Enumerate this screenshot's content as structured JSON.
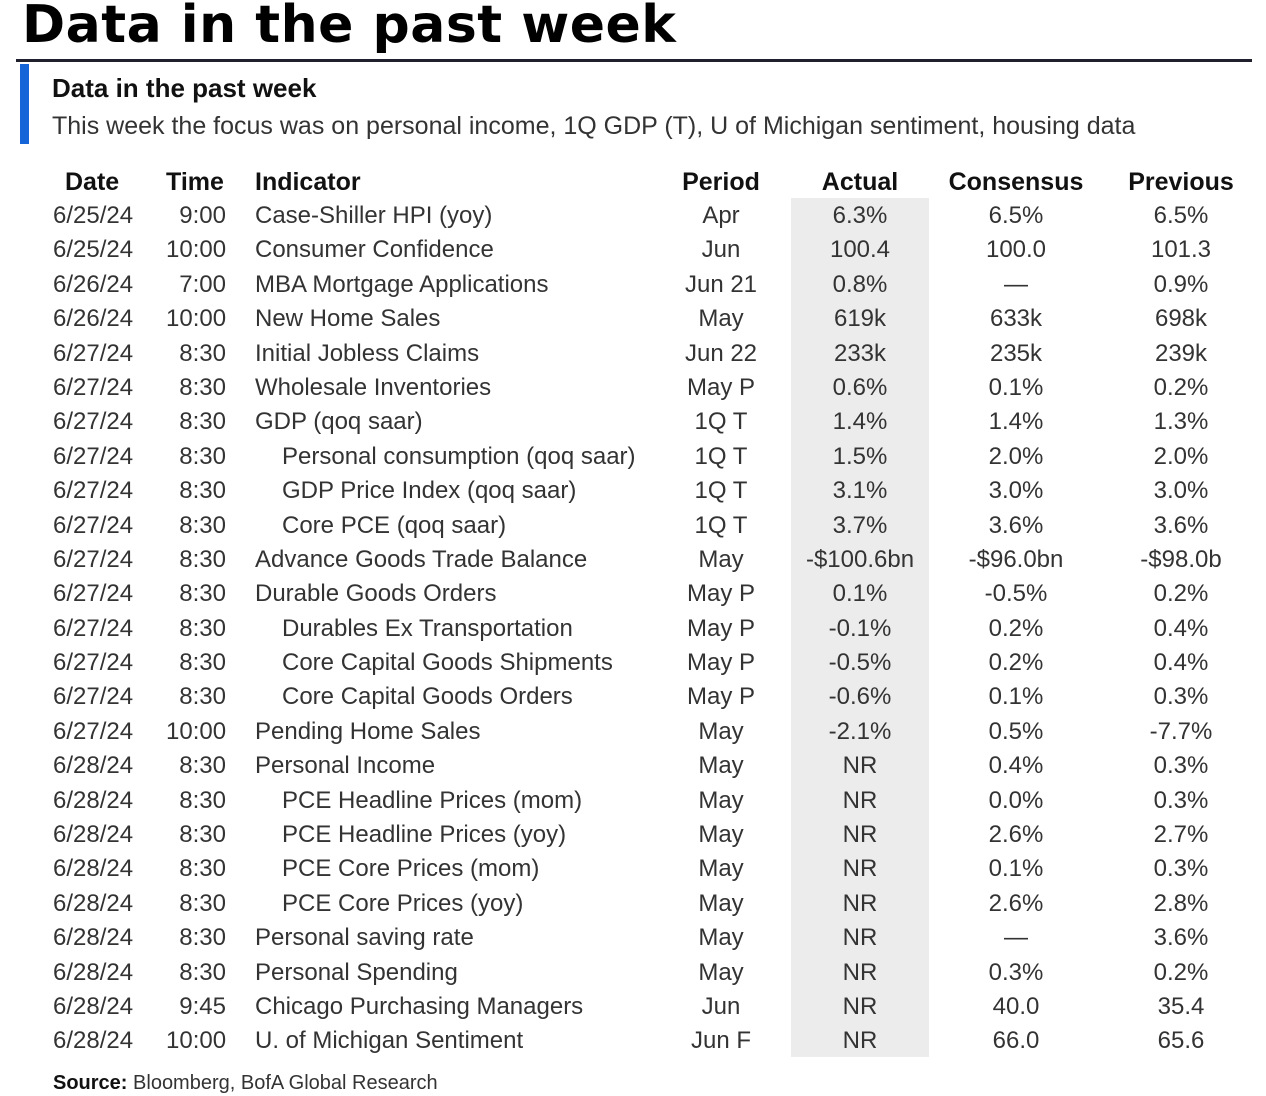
{
  "page_title": "Data in the past week",
  "table": {
    "title": "Data in the past week",
    "subtitle": "This week the focus was on personal income, 1Q GDP (T), U of Michigan sentiment, housing data",
    "headers": {
      "date": "Date",
      "time": "Time",
      "indicator": "Indicator",
      "period": "Period",
      "actual": "Actual",
      "consensus": "Consensus",
      "previous": "Previous"
    },
    "rows": [
      {
        "date": "6/25/24",
        "time": "9:00",
        "indicator": "Case-Shiller HPI (yoy)",
        "sub": false,
        "period": "Apr",
        "actual": "6.3%",
        "consensus": "6.5%",
        "previous": "6.5%"
      },
      {
        "date": "6/25/24",
        "time": "10:00",
        "indicator": "Consumer Confidence",
        "sub": false,
        "period": "Jun",
        "actual": "100.4",
        "consensus": "100.0",
        "previous": "101.3"
      },
      {
        "date": "6/26/24",
        "time": "7:00",
        "indicator": "MBA Mortgage Applications",
        "sub": false,
        "period": "Jun 21",
        "actual": "0.8%",
        "consensus": "—",
        "previous": "0.9%"
      },
      {
        "date": "6/26/24",
        "time": "10:00",
        "indicator": "New Home Sales",
        "sub": false,
        "period": "May",
        "actual": "619k",
        "consensus": "633k",
        "previous": "698k"
      },
      {
        "date": "6/27/24",
        "time": "8:30",
        "indicator": "Initial Jobless Claims",
        "sub": false,
        "period": "Jun 22",
        "actual": "233k",
        "consensus": "235k",
        "previous": "239k"
      },
      {
        "date": "6/27/24",
        "time": "8:30",
        "indicator": "Wholesale Inventories",
        "sub": false,
        "period": "May P",
        "actual": "0.6%",
        "consensus": "0.1%",
        "previous": "0.2%"
      },
      {
        "date": "6/27/24",
        "time": "8:30",
        "indicator": "GDP (qoq saar)",
        "sub": false,
        "period": "1Q T",
        "actual": "1.4%",
        "consensus": "1.4%",
        "previous": "1.3%"
      },
      {
        "date": "6/27/24",
        "time": "8:30",
        "indicator": "Personal consumption (qoq saar)",
        "sub": true,
        "period": "1Q T",
        "actual": "1.5%",
        "consensus": "2.0%",
        "previous": "2.0%"
      },
      {
        "date": "6/27/24",
        "time": "8:30",
        "indicator": "GDP Price Index (qoq saar)",
        "sub": true,
        "period": "1Q T",
        "actual": "3.1%",
        "consensus": "3.0%",
        "previous": "3.0%"
      },
      {
        "date": "6/27/24",
        "time": "8:30",
        "indicator": "Core PCE (qoq saar)",
        "sub": true,
        "period": "1Q T",
        "actual": "3.7%",
        "consensus": "3.6%",
        "previous": "3.6%"
      },
      {
        "date": "6/27/24",
        "time": "8:30",
        "indicator": "Advance Goods Trade Balance",
        "sub": false,
        "period": "May",
        "actual": "-$100.6bn",
        "consensus": "-$96.0bn",
        "previous": "-$98.0b"
      },
      {
        "date": "6/27/24",
        "time": "8:30",
        "indicator": "Durable Goods Orders",
        "sub": false,
        "period": "May P",
        "actual": "0.1%",
        "consensus": "-0.5%",
        "previous": "0.2%"
      },
      {
        "date": "6/27/24",
        "time": "8:30",
        "indicator": "Durables Ex Transportation",
        "sub": true,
        "period": "May P",
        "actual": "-0.1%",
        "consensus": "0.2%",
        "previous": "0.4%"
      },
      {
        "date": "6/27/24",
        "time": "8:30",
        "indicator": "Core Capital Goods Shipments",
        "sub": true,
        "period": "May P",
        "actual": "-0.5%",
        "consensus": "0.2%",
        "previous": "0.4%"
      },
      {
        "date": "6/27/24",
        "time": "8:30",
        "indicator": "Core Capital Goods Orders",
        "sub": true,
        "period": "May P",
        "actual": "-0.6%",
        "consensus": "0.1%",
        "previous": "0.3%"
      },
      {
        "date": "6/27/24",
        "time": "10:00",
        "indicator": "Pending Home Sales",
        "sub": false,
        "period": "May",
        "actual": "-2.1%",
        "consensus": "0.5%",
        "previous": "-7.7%"
      },
      {
        "date": "6/28/24",
        "time": "8:30",
        "indicator": "Personal Income",
        "sub": false,
        "period": "May",
        "actual": "NR",
        "consensus": "0.4%",
        "previous": "0.3%"
      },
      {
        "date": "6/28/24",
        "time": "8:30",
        "indicator": "PCE Headline Prices (mom)",
        "sub": true,
        "period": "May",
        "actual": "NR",
        "consensus": "0.0%",
        "previous": "0.3%"
      },
      {
        "date": "6/28/24",
        "time": "8:30",
        "indicator": "PCE Headline Prices (yoy)",
        "sub": true,
        "period": "May",
        "actual": "NR",
        "consensus": "2.6%",
        "previous": "2.7%"
      },
      {
        "date": "6/28/24",
        "time": "8:30",
        "indicator": "PCE Core Prices (mom)",
        "sub": true,
        "period": "May",
        "actual": "NR",
        "consensus": "0.1%",
        "previous": "0.3%"
      },
      {
        "date": "6/28/24",
        "time": "8:30",
        "indicator": "PCE Core Prices (yoy)",
        "sub": true,
        "period": "May",
        "actual": "NR",
        "consensus": "2.6%",
        "previous": "2.8%"
      },
      {
        "date": "6/28/24",
        "time": "8:30",
        "indicator": "Personal saving rate",
        "sub": false,
        "period": "May",
        "actual": "NR",
        "consensus": "—",
        "previous": "3.6%"
      },
      {
        "date": "6/28/24",
        "time": "8:30",
        "indicator": "Personal Spending",
        "sub": false,
        "period": "May",
        "actual": "NR",
        "consensus": "0.3%",
        "previous": "0.2%"
      },
      {
        "date": "6/28/24",
        "time": "9:45",
        "indicator": "Chicago Purchasing Managers",
        "sub": false,
        "period": "Jun",
        "actual": "NR",
        "consensus": "40.0",
        "previous": "35.4"
      },
      {
        "date": "6/28/24",
        "time": "10:00",
        "indicator": "U. of Michigan Sentiment",
        "sub": false,
        "period": "Jun F",
        "actual": "NR",
        "consensus": "66.0",
        "previous": "65.6"
      }
    ]
  },
  "source": {
    "label": "Source:",
    "text": "Bloomberg, BofA Global Research"
  },
  "colors": {
    "accent": "#1565d8",
    "actual_column_bg": "#ececec"
  }
}
